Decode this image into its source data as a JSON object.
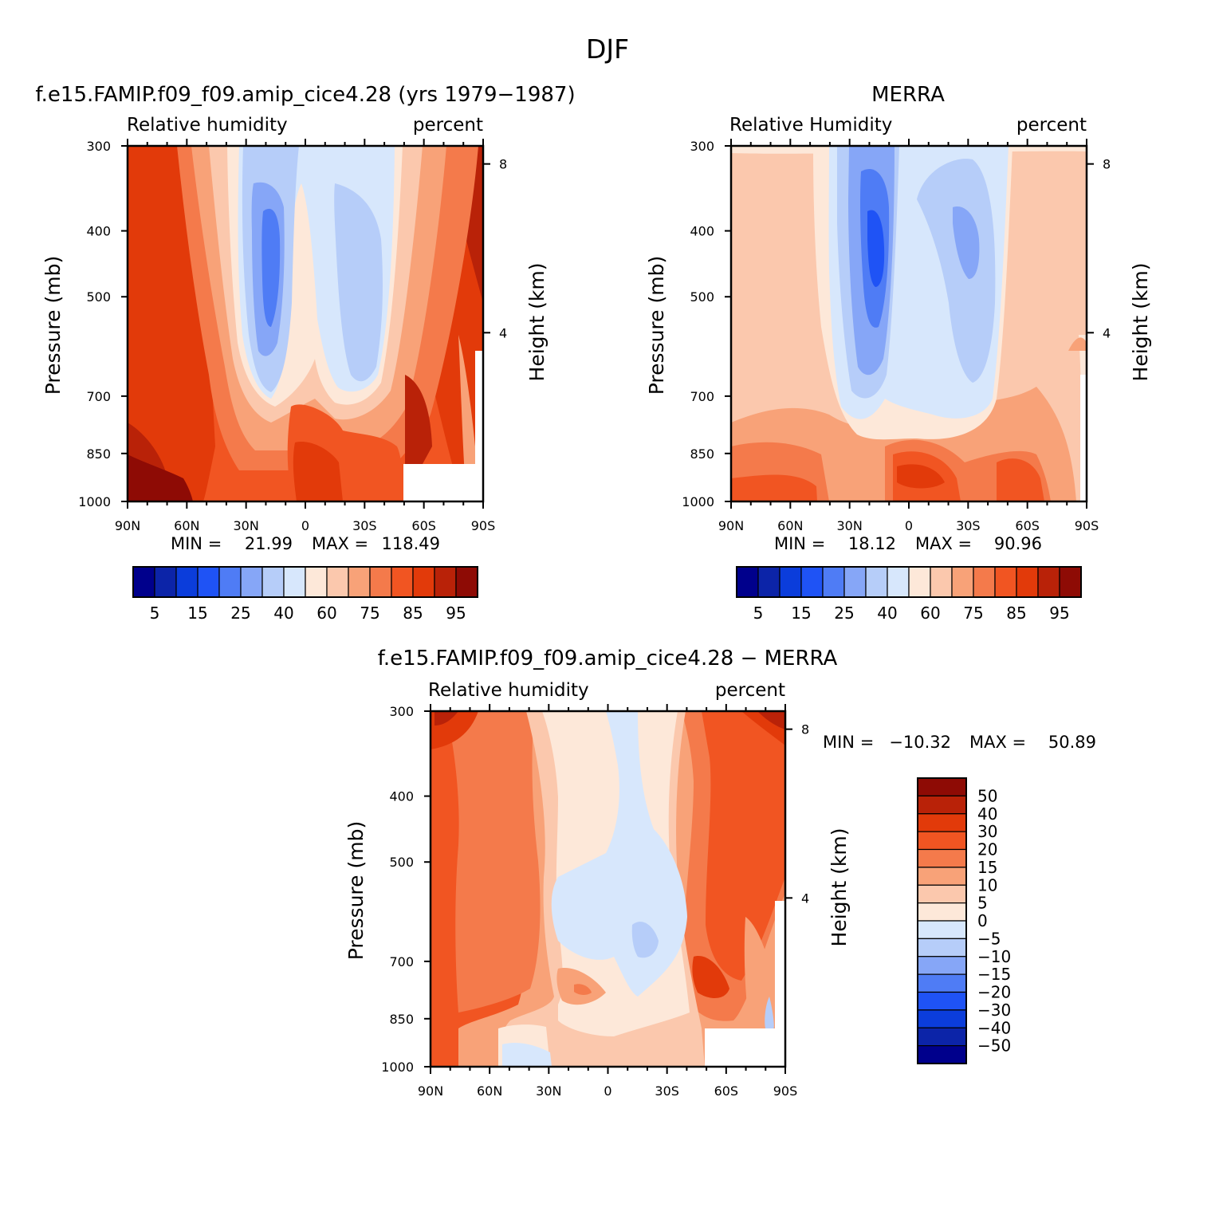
{
  "figure": {
    "title": "DJF"
  },
  "colors": {
    "abs_scale": [
      "#00008c",
      "#0c24a8",
      "#0b3ddb",
      "#1f53f5",
      "#4f7cf5",
      "#86a6f7",
      "#b6cdf9",
      "#d7e7fc",
      "#fde8d9",
      "#fbc8ad",
      "#f8a278",
      "#f47a4b",
      "#f15522",
      "#e23a0a",
      "#b92208",
      "#8e0b05"
    ],
    "diff_scale": [
      "#00008c",
      "#0c24a8",
      "#0b3ddb",
      "#1f53f5",
      "#4f7cf5",
      "#86a6f7",
      "#b6cdf9",
      "#d7e7fc",
      "#fde8d9",
      "#fbc8ad",
      "#f8a278",
      "#f47a4b",
      "#f15522",
      "#e23a0a",
      "#b92208",
      "#8e0b05"
    ]
  },
  "chart_data": [
    {
      "type": "heatmap",
      "title": "f.e15.FAMIP.f09_f09.amip_cice4.28 (yrs 1979−1987)",
      "left_label": "Relative humidity",
      "right_label": "percent",
      "ylabel": "Pressure (mb)",
      "y2label": "Height (km)",
      "x_ticks": [
        "90N",
        "60N",
        "30N",
        "0",
        "30S",
        "60S",
        "90S"
      ],
      "y_ticks": [
        300,
        400,
        500,
        700,
        850,
        1000
      ],
      "y2_ticks": [
        8,
        4
      ],
      "ylim": [
        1000,
        300
      ],
      "y_scale": "log",
      "stats": {
        "min_label": "MIN =",
        "min": "21.99",
        "max_label": "MAX =",
        "max": "118.49"
      },
      "colorbar_labels": [
        "5",
        "15",
        "25",
        "40",
        "60",
        "75",
        "85",
        "95"
      ],
      "levels": [
        5,
        10,
        15,
        20,
        25,
        30,
        40,
        50,
        60,
        70,
        75,
        80,
        85,
        90,
        95
      ]
    },
    {
      "type": "heatmap",
      "title": "MERRA",
      "left_label": "Relative Humidity",
      "right_label": "percent",
      "ylabel": "Pressure (mb)",
      "y2label": "Height (km)",
      "x_ticks": [
        "90N",
        "60N",
        "30N",
        "0",
        "30S",
        "60S",
        "90S"
      ],
      "y_ticks": [
        300,
        400,
        500,
        700,
        850,
        1000
      ],
      "y2_ticks": [
        8,
        4
      ],
      "ylim": [
        1000,
        300
      ],
      "y_scale": "log",
      "stats": {
        "min_label": "MIN =",
        "min": "18.12",
        "max_label": "MAX =",
        "max": "90.96"
      },
      "colorbar_labels": [
        "5",
        "15",
        "25",
        "40",
        "60",
        "75",
        "85",
        "95"
      ],
      "levels": [
        5,
        10,
        15,
        20,
        25,
        30,
        40,
        50,
        60,
        70,
        75,
        80,
        85,
        90,
        95
      ]
    },
    {
      "type": "heatmap",
      "title": "f.e15.FAMIP.f09_f09.amip_cice4.28 − MERRA",
      "left_label": "Relative humidity",
      "right_label": "percent",
      "ylabel": "Pressure (mb)",
      "y2label": "Height (km)",
      "x_ticks": [
        "90N",
        "60N",
        "30N",
        "0",
        "30S",
        "60S",
        "90S"
      ],
      "y_ticks": [
        300,
        400,
        500,
        700,
        850,
        1000
      ],
      "y2_ticks": [
        8,
        4
      ],
      "ylim": [
        1000,
        300
      ],
      "y_scale": "log",
      "stats": {
        "min_label": "MIN =",
        "min": "−10.32",
        "max_label": "MAX =",
        "max": "50.89"
      },
      "colorbar_labels": [
        "50",
        "40",
        "30",
        "20",
        "15",
        "10",
        "5",
        "0",
        "−5",
        "−10",
        "−15",
        "−20",
        "−30",
        "−40",
        "−50"
      ],
      "levels": [
        -50,
        -40,
        -30,
        -20,
        -15,
        -10,
        -5,
        0,
        5,
        10,
        15,
        20,
        30,
        40,
        50
      ]
    }
  ]
}
